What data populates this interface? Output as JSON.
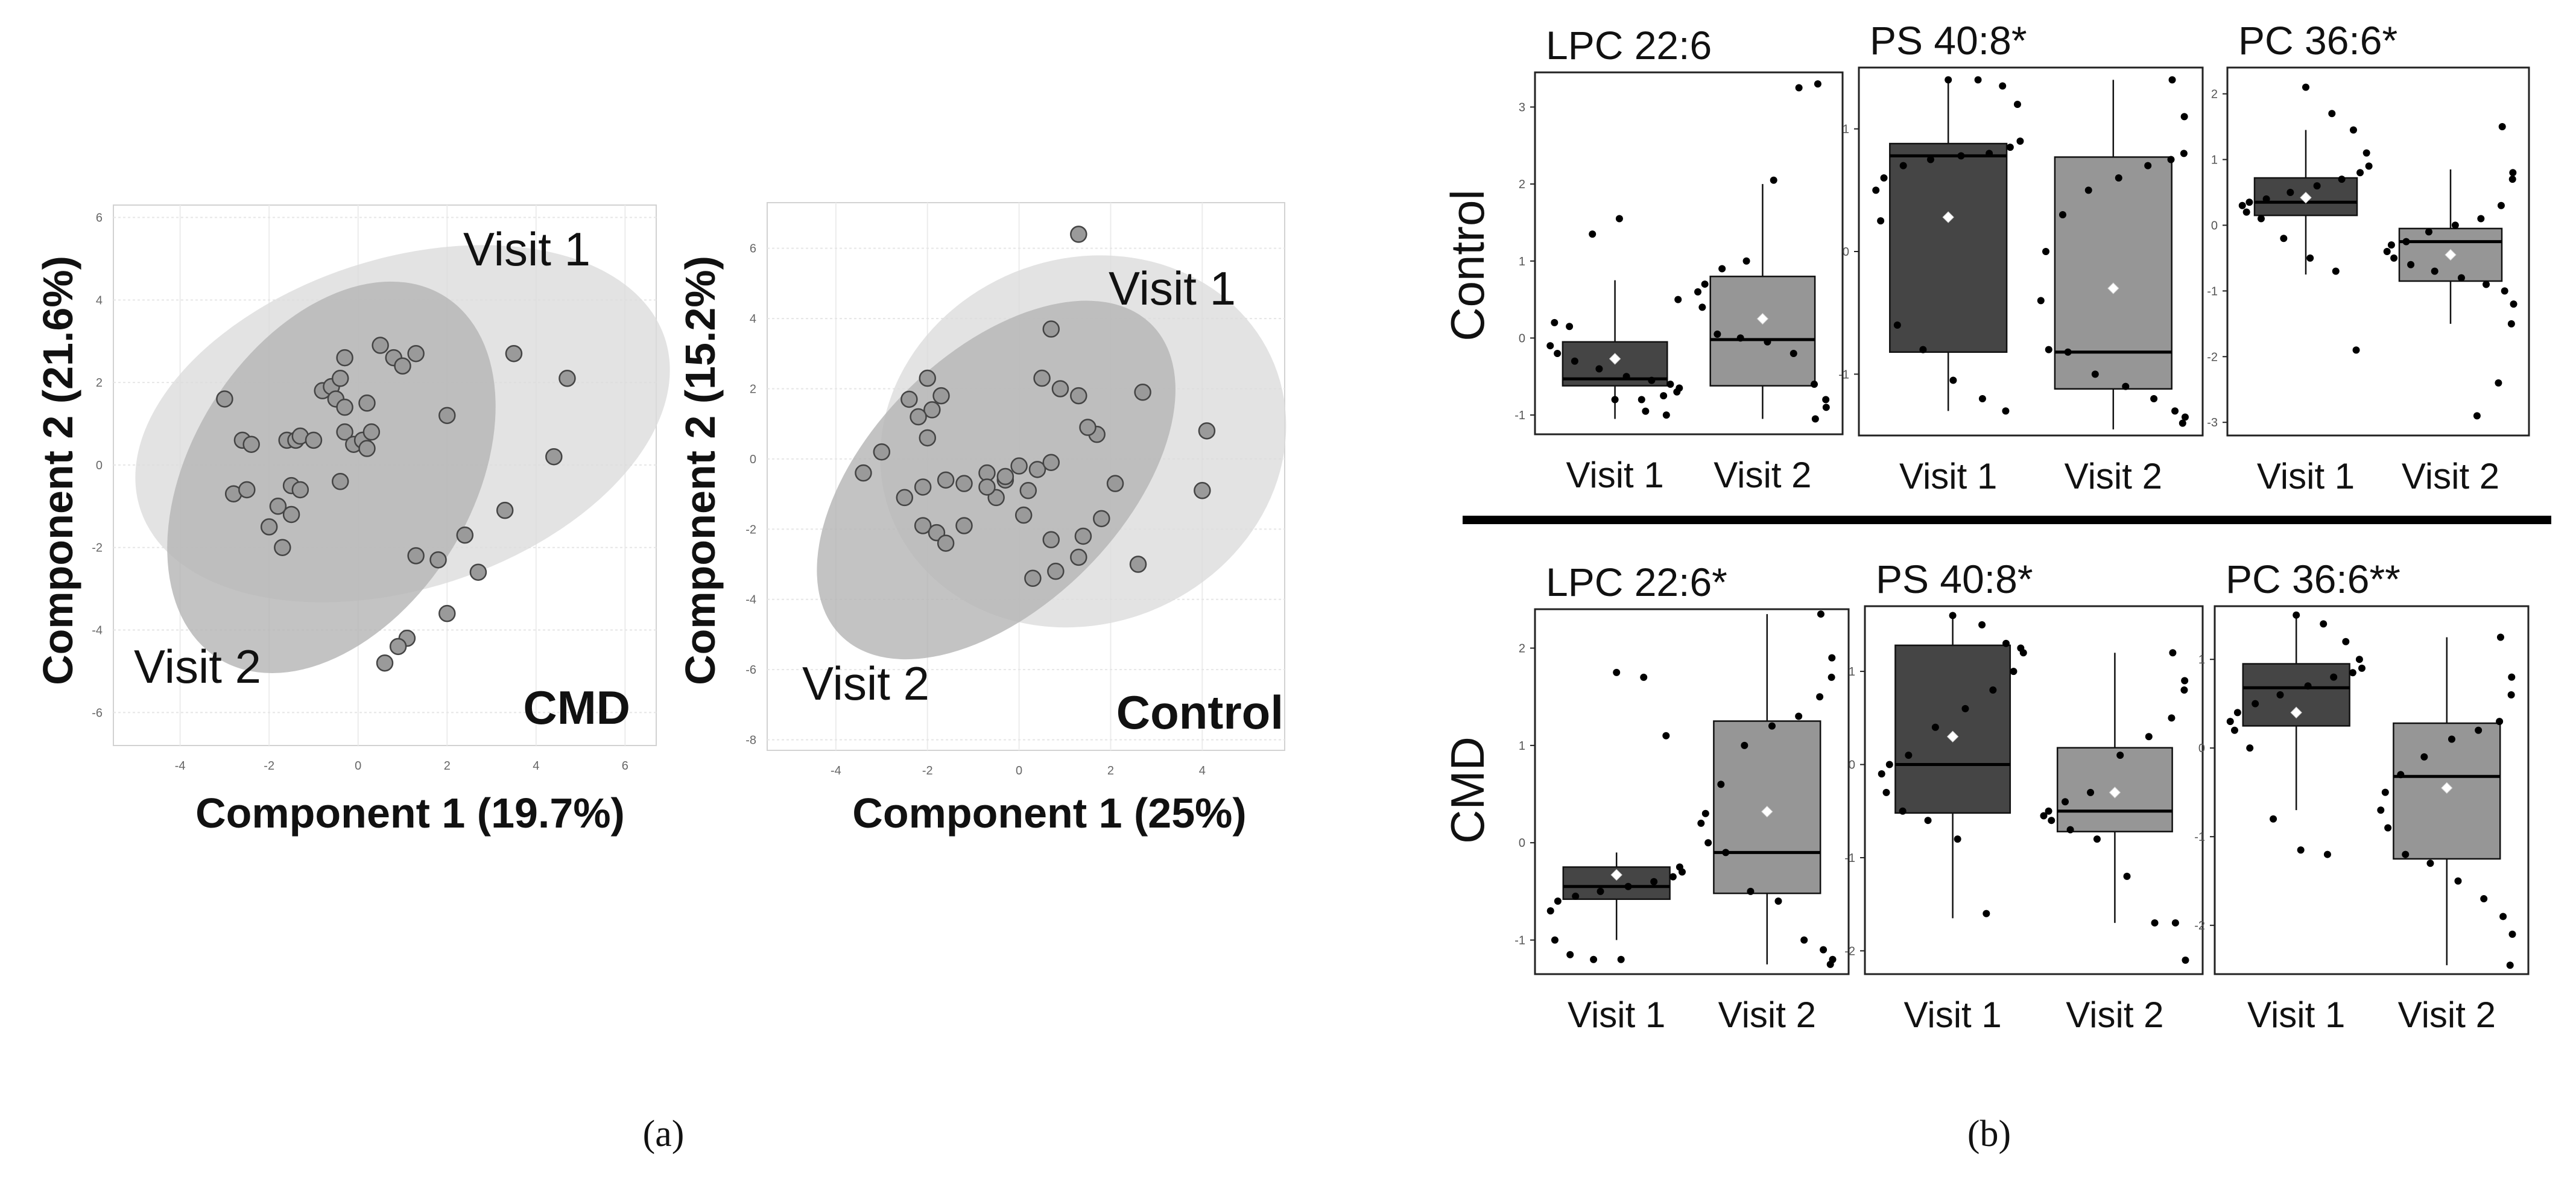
{
  "figure": {
    "panel_a_label": "(a)",
    "panel_b_label": "(b)"
  },
  "chart_data": [
    {
      "id": "pca-cmd",
      "type": "scatter",
      "title": "CMD",
      "xlabel": "Component 1 (19.7%)",
      "ylabel": "Component 2 (21.6%)",
      "xlim": [
        -5.5,
        6.7
      ],
      "ylim": [
        -6.8,
        6.3
      ],
      "xticks": [
        -4,
        -2,
        0,
        2,
        4,
        6
      ],
      "yticks": [
        -6,
        -4,
        -2,
        0,
        2,
        4,
        6
      ],
      "grid": true,
      "annotations": [
        "Visit 1",
        "Visit 2"
      ],
      "ellipses": [
        {
          "group": "Visit 1",
          "cx": 1.0,
          "cy": 1.0,
          "rx": 6.2,
          "ry": 4.0,
          "angle": -18,
          "color": "#dcdcdc"
        },
        {
          "group": "Visit 2",
          "cx": -0.6,
          "cy": -0.3,
          "rx": 4.8,
          "ry": 3.4,
          "angle": -58,
          "color": "#b4b4b4"
        }
      ],
      "points": [
        [
          -3.0,
          1.6
        ],
        [
          -2.6,
          0.6
        ],
        [
          -2.4,
          0.5
        ],
        [
          -2.8,
          -0.7
        ],
        [
          -2.5,
          -0.6
        ],
        [
          -2.0,
          -1.5
        ],
        [
          -1.8,
          -1.0
        ],
        [
          -1.6,
          0.6
        ],
        [
          -1.4,
          0.6
        ],
        [
          -1.3,
          0.7
        ],
        [
          -1.5,
          -0.5
        ],
        [
          -1.3,
          -0.6
        ],
        [
          -1.7,
          -2.0
        ],
        [
          -1.5,
          -1.2
        ],
        [
          -1.0,
          0.6
        ],
        [
          -0.8,
          1.8
        ],
        [
          -0.6,
          1.9
        ],
        [
          -0.5,
          1.6
        ],
        [
          -0.4,
          2.1
        ],
        [
          -0.3,
          2.6
        ],
        [
          -0.3,
          0.8
        ],
        [
          -0.1,
          0.5
        ],
        [
          0.1,
          0.6
        ],
        [
          0.2,
          1.5
        ],
        [
          0.3,
          0.8
        ],
        [
          0.5,
          2.9
        ],
        [
          0.8,
          2.6
        ],
        [
          1.0,
          2.4
        ],
        [
          1.3,
          2.7
        ],
        [
          2.0,
          1.2
        ],
        [
          -0.4,
          -0.4
        ],
        [
          0.2,
          0.4
        ],
        [
          1.3,
          -2.2
        ],
        [
          1.8,
          -2.3
        ],
        [
          2.0,
          -3.6
        ],
        [
          2.4,
          -1.7
        ],
        [
          2.7,
          -2.6
        ],
        [
          1.1,
          -4.2
        ],
        [
          0.9,
          -4.4
        ],
        [
          0.6,
          -4.8
        ],
        [
          3.3,
          -1.1
        ],
        [
          3.5,
          2.7
        ],
        [
          4.4,
          0.2
        ],
        [
          4.7,
          2.1
        ],
        [
          -0.3,
          1.4
        ]
      ]
    },
    {
      "id": "pca-control",
      "type": "scatter",
      "title": "Control",
      "xlabel": "Component 1 (25%)",
      "ylabel": "Component 2 (15.2%)",
      "xlim": [
        -5.5,
        5.8
      ],
      "ylim": [
        -8.3,
        7.3
      ],
      "xticks": [
        -4,
        -2,
        0,
        2,
        4
      ],
      "yticks": [
        -8,
        -6,
        -4,
        -2,
        0,
        2,
        4,
        6
      ],
      "grid": true,
      "annotations": [
        "Visit 1",
        "Visit 2"
      ],
      "ellipses": [
        {
          "group": "Visit 1",
          "cx": 1.4,
          "cy": 0.5,
          "rx": 4.5,
          "ry": 5.2,
          "angle": -22,
          "color": "#dcdcdc"
        },
        {
          "group": "Visit 2",
          "cx": -0.5,
          "cy": -0.6,
          "rx": 4.8,
          "ry": 3.6,
          "angle": -45,
          "color": "#b4b4b4"
        }
      ],
      "points": [
        [
          1.3,
          6.4
        ],
        [
          0.7,
          3.7
        ],
        [
          1.3,
          1.8
        ],
        [
          0.9,
          2.0
        ],
        [
          0.5,
          2.3
        ],
        [
          1.7,
          0.7
        ],
        [
          1.5,
          0.9
        ],
        [
          2.7,
          1.9
        ],
        [
          4.1,
          0.8
        ],
        [
          4.0,
          -0.9
        ],
        [
          2.1,
          -0.7
        ],
        [
          -2.0,
          2.3
        ],
        [
          -2.4,
          1.7
        ],
        [
          -1.7,
          1.8
        ],
        [
          -1.9,
          1.4
        ],
        [
          -2.2,
          1.2
        ],
        [
          -2.0,
          0.6
        ],
        [
          -3.0,
          0.2
        ],
        [
          -3.4,
          -0.4
        ],
        [
          -2.5,
          -1.1
        ],
        [
          -2.1,
          -0.8
        ],
        [
          -1.6,
          -0.6
        ],
        [
          -1.2,
          -0.7
        ],
        [
          -0.7,
          -0.4
        ],
        [
          -0.3,
          -0.6
        ],
        [
          0.0,
          -0.2
        ],
        [
          0.4,
          -0.3
        ],
        [
          0.7,
          -0.1
        ],
        [
          0.2,
          -0.9
        ],
        [
          -0.5,
          -1.1
        ],
        [
          -2.1,
          -1.9
        ],
        [
          -1.8,
          -2.1
        ],
        [
          -1.6,
          -2.4
        ],
        [
          -1.2,
          -1.9
        ],
        [
          -0.7,
          -0.8
        ],
        [
          0.1,
          -1.6
        ],
        [
          0.7,
          -2.3
        ],
        [
          1.8,
          -1.7
        ],
        [
          1.4,
          -2.2
        ],
        [
          1.3,
          -2.8
        ],
        [
          0.8,
          -3.2
        ],
        [
          0.3,
          -3.4
        ],
        [
          2.6,
          -3.0
        ],
        [
          -0.3,
          -0.5
        ]
      ]
    },
    {
      "id": "box-control-lpc",
      "type": "box",
      "group": "Control",
      "title": "LPC 22:6",
      "categories": [
        "Visit 1",
        "Visit 2"
      ],
      "ylim": [
        -1.25,
        3.45
      ],
      "yticks": [
        -1,
        0,
        1,
        2,
        3
      ],
      "boxes": [
        {
          "q1": -0.62,
          "median": -0.53,
          "q3": -0.05,
          "low": -1.05,
          "high": 0.75,
          "mean": -0.27,
          "points": [
            -0.8,
            -0.8,
            -0.75,
            -0.7,
            -0.65,
            -0.6,
            -0.55,
            -0.5,
            -0.4,
            -0.3,
            -0.2,
            -0.1,
            0.2,
            0.15,
            1.35,
            1.55,
            -0.95,
            -1.0,
            0.5
          ]
        },
        {
          "q1": -0.62,
          "median": -0.02,
          "q3": 0.8,
          "low": -1.05,
          "high": 2.0,
          "mean": 0.25,
          "points": [
            -1.05,
            -0.9,
            -0.8,
            -0.6,
            -0.2,
            -0.05,
            0.0,
            0.05,
            0.4,
            0.6,
            0.7,
            0.9,
            1.0,
            2.05,
            3.25,
            3.3
          ]
        }
      ]
    },
    {
      "id": "box-control-ps",
      "type": "box",
      "group": "Control",
      "title": "PS 40:8*",
      "categories": [
        "Visit 1",
        "Visit 2"
      ],
      "ylim": [
        -1.5,
        1.5
      ],
      "yticks": [
        -1,
        0,
        1
      ],
      "boxes": [
        {
          "q1": -0.82,
          "median": 0.78,
          "q3": 0.88,
          "low": -1.3,
          "high": 1.4,
          "mean": 0.28,
          "points": [
            1.4,
            1.4,
            1.35,
            1.2,
            0.9,
            0.85,
            0.8,
            0.78,
            0.75,
            0.7,
            0.6,
            0.5,
            0.25,
            -0.6,
            -0.8,
            -1.05,
            -1.2,
            -1.3
          ]
        },
        {
          "q1": -1.12,
          "median": -0.82,
          "q3": 0.77,
          "low": -1.45,
          "high": 1.4,
          "mean": -0.3,
          "points": [
            1.4,
            1.1,
            0.8,
            0.75,
            0.7,
            0.6,
            0.5,
            0.3,
            0.0,
            -0.4,
            -0.8,
            -0.82,
            -1.0,
            -1.1,
            -1.2,
            -1.3,
            -1.35,
            -1.4
          ]
        }
      ]
    },
    {
      "id": "box-control-pc",
      "type": "box",
      "group": "Control",
      "title": "PC 36:6*",
      "categories": [
        "Visit 1",
        "Visit 2"
      ],
      "ylim": [
        -3.2,
        2.4
      ],
      "yticks": [
        -3,
        -2,
        -1,
        0,
        1,
        2
      ],
      "boxes": [
        {
          "q1": 0.15,
          "median": 0.35,
          "q3": 0.72,
          "low": -0.75,
          "high": 1.45,
          "mean": 0.42,
          "points": [
            2.1,
            1.7,
            1.45,
            1.1,
            0.9,
            0.8,
            0.7,
            0.6,
            0.5,
            0.4,
            0.35,
            0.3,
            0.2,
            0.1,
            -0.2,
            -0.5,
            -0.7,
            -1.9
          ]
        },
        {
          "q1": -0.85,
          "median": -0.25,
          "q3": -0.05,
          "low": -1.5,
          "high": 0.85,
          "mean": -0.45,
          "points": [
            1.5,
            0.8,
            0.7,
            0.3,
            0.1,
            0.0,
            -0.1,
            -0.25,
            -0.3,
            -0.4,
            -0.5,
            -0.6,
            -0.7,
            -0.8,
            -0.9,
            -1.0,
            -1.2,
            -1.5,
            -2.4,
            -2.9
          ]
        }
      ]
    },
    {
      "id": "box-cmd-lpc",
      "type": "box",
      "group": "CMD",
      "title": "LPC 22:6*",
      "categories": [
        "Visit 1",
        "Visit 2"
      ],
      "ylim": [
        -1.35,
        2.4
      ],
      "yticks": [
        -1,
        0,
        1,
        2
      ],
      "boxes": [
        {
          "q1": -0.58,
          "median": -0.45,
          "q3": -0.25,
          "low": -1.0,
          "high": -0.1,
          "mean": -0.33,
          "points": [
            1.75,
            1.7,
            1.1,
            -0.25,
            -0.3,
            -0.35,
            -0.4,
            -0.45,
            -0.5,
            -0.55,
            -0.6,
            -0.7,
            -1.0,
            -1.15,
            -1.2,
            -1.2
          ]
        },
        {
          "q1": -0.52,
          "median": -0.1,
          "q3": 1.25,
          "low": -1.25,
          "high": 2.35,
          "mean": 0.32,
          "points": [
            2.35,
            1.9,
            1.7,
            1.5,
            1.3,
            1.2,
            1.0,
            0.6,
            0.3,
            0.2,
            0.0,
            -0.1,
            -0.5,
            -0.6,
            -1.0,
            -1.1,
            -1.2,
            -1.25
          ]
        }
      ]
    },
    {
      "id": "box-cmd-ps",
      "type": "box",
      "group": "CMD",
      "title": "PS 40:8*",
      "categories": [
        "Visit 1",
        "Visit 2"
      ],
      "ylim": [
        -2.25,
        1.7
      ],
      "yticks": [
        -2,
        -1,
        0,
        1
      ],
      "boxes": [
        {
          "q1": -0.52,
          "median": 0.0,
          "q3": 1.28,
          "low": -1.65,
          "high": 1.6,
          "mean": 0.3,
          "points": [
            1.6,
            1.5,
            1.3,
            1.25,
            1.2,
            1.0,
            0.8,
            0.6,
            0.4,
            0.1,
            0.0,
            -0.1,
            -0.3,
            -0.5,
            -0.6,
            -0.8,
            -1.6
          ]
        },
        {
          "q1": -0.72,
          "median": -0.5,
          "q3": 0.18,
          "low": -1.7,
          "high": 1.2,
          "mean": -0.3,
          "points": [
            1.2,
            0.9,
            0.8,
            0.5,
            0.3,
            0.1,
            -0.3,
            -0.4,
            -0.5,
            -0.55,
            -0.6,
            -0.7,
            -0.8,
            -1.2,
            -1.7,
            -1.7,
            -2.1
          ]
        }
      ]
    },
    {
      "id": "box-cmd-pc",
      "type": "box",
      "group": "CMD",
      "title": "PC 36:6**",
      "categories": [
        "Visit 1",
        "Visit 2"
      ],
      "ylim": [
        -2.55,
        1.6
      ],
      "yticks": [
        -2,
        -1,
        0,
        1
      ],
      "boxes": [
        {
          "q1": 0.25,
          "median": 0.68,
          "q3": 0.95,
          "low": -0.7,
          "high": 1.5,
          "mean": 0.4,
          "points": [
            1.5,
            1.4,
            1.2,
            1.0,
            0.9,
            0.85,
            0.8,
            0.7,
            0.6,
            0.5,
            0.4,
            0.3,
            0.2,
            0.0,
            -0.8,
            -1.15,
            -1.2
          ]
        },
        {
          "q1": -1.25,
          "median": -0.32,
          "q3": 0.28,
          "low": -2.45,
          "high": 1.25,
          "mean": -0.45,
          "points": [
            1.25,
            0.8,
            0.6,
            0.3,
            0.2,
            0.1,
            -0.1,
            -0.3,
            -0.5,
            -0.7,
            -0.9,
            -1.2,
            -1.3,
            -1.5,
            -1.7,
            -1.9,
            -2.1,
            -2.45
          ]
        }
      ]
    }
  ],
  "row_labels": [
    "Control",
    "CMD"
  ]
}
